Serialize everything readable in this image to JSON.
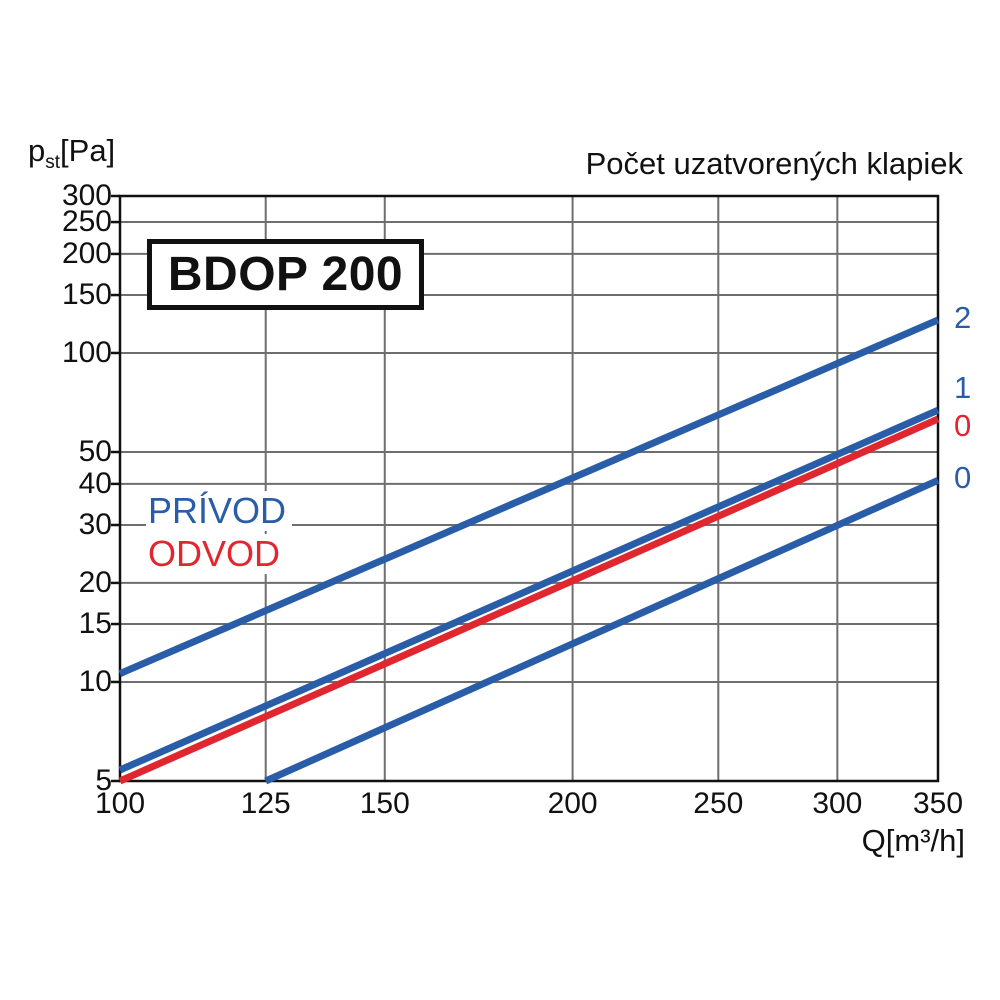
{
  "chart_data": {
    "type": "line",
    "scale": "log-log",
    "title": "Počet uzatvorených klapiek",
    "model_label": "BDOP 200",
    "xlabel": "Q[m³/h]",
    "ylabel_prefix": "p",
    "ylabel_sub": "st",
    "ylabel_unit": "[Pa]",
    "xlim": [
      100,
      350
    ],
    "ylim": [
      5,
      300
    ],
    "x_ticks": [
      100,
      125,
      150,
      200,
      250,
      300,
      350
    ],
    "x_gridlines": [
      125,
      150,
      200,
      250,
      300
    ],
    "y_ticks": [
      300,
      250,
      200,
      150,
      100,
      50,
      40,
      30,
      20,
      15,
      10,
      5
    ],
    "y_gridlines": [
      250,
      200,
      150,
      100,
      50,
      40,
      30,
      20,
      15,
      10
    ],
    "grid": true,
    "grid_color": "#6e6e6e",
    "axis_color": "#111111",
    "legend_position": "left-middle",
    "legend": [
      {
        "label": "PRÍVOD",
        "color": "#2a5da8"
      },
      {
        "label": "ODVOD",
        "color": "#e0262e"
      }
    ],
    "series": [
      {
        "name": "PRÍVOD — 2 uzatvorené klapky",
        "color": "#2a5da8",
        "end_label": "2",
        "label_dy": -2,
        "points": [
          [
            100,
            10.6
          ],
          [
            350,
            126
          ]
        ]
      },
      {
        "name": "PRÍVOD — 1 uzatvorená klapka",
        "color": "#2a5da8",
        "end_label": "1",
        "label_dy": -22,
        "points": [
          [
            100,
            5.4
          ],
          [
            350,
            67
          ]
        ]
      },
      {
        "name": "ODVOD — 0 uzatvorených klapiek",
        "color": "#e0262e",
        "end_label": "0",
        "label_dy": 7,
        "points": [
          [
            100,
            5.0
          ],
          [
            350,
            63
          ]
        ]
      },
      {
        "name": "PRÍVOD — 0 uzatvorených klapiek",
        "color": "#2a5da8",
        "end_label": "0",
        "label_dy": -2,
        "points": [
          [
            125,
            5.0
          ],
          [
            350,
            41
          ]
        ]
      }
    ]
  }
}
